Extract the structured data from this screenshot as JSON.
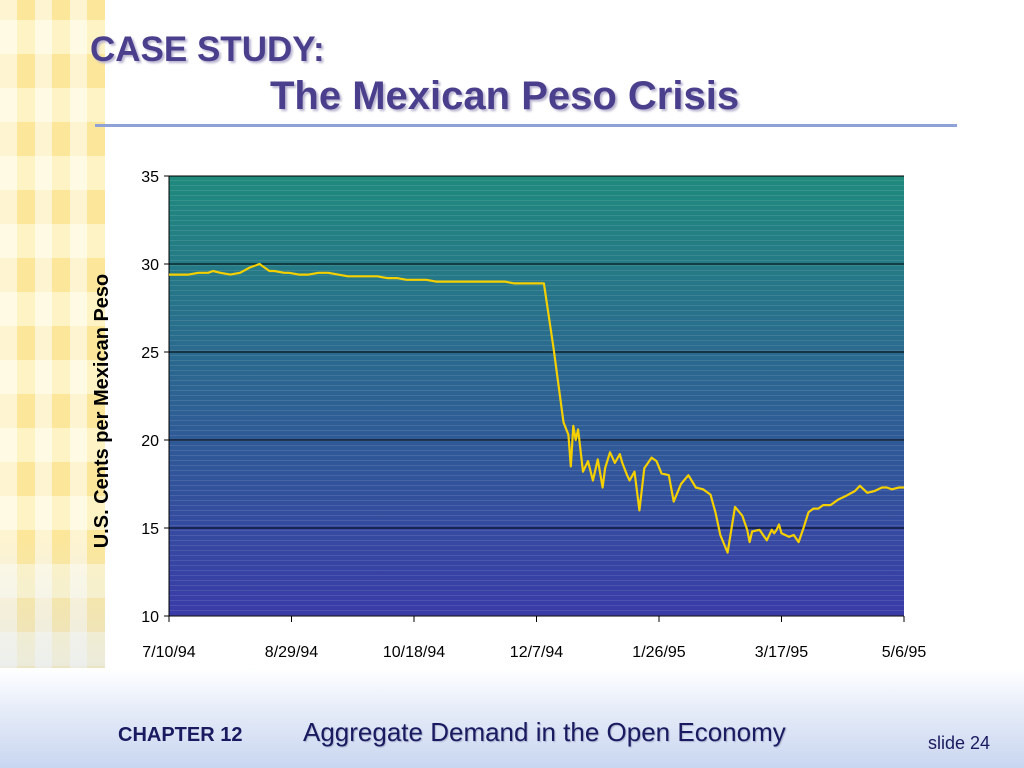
{
  "slide": {
    "title_case": "CASE STUDY:",
    "title_main": "The Mexican Peso Crisis",
    "footer_chapter": "CHAPTER 12",
    "footer_subject": "Aggregate Demand in the Open Economy",
    "footer_slide": "slide 24"
  },
  "colors": {
    "title": "#4a3f8c",
    "line": "#f5d000",
    "plot_top": "#1f8a7d",
    "plot_bottom": "#3a3ba8"
  },
  "chart_data": {
    "type": "line",
    "title": "",
    "xlabel": "",
    "ylabel": "U.S. Cents per Mexican Peso",
    "ylim": [
      10,
      35
    ],
    "yticks": [
      "10",
      "15",
      "20",
      "25",
      "30",
      "35"
    ],
    "xlim": [
      "1994-07-10",
      "1995-05-06"
    ],
    "xticks": [
      "7/10/94",
      "8/29/94",
      "10/18/94",
      "12/7/94",
      "1/26/95",
      "3/17/95",
      "5/6/95"
    ],
    "grid": true,
    "legend": "none",
    "series": [
      {
        "x": [
          "1994-07-10",
          "1994-07-14",
          "1994-07-18",
          "1994-07-22",
          "1994-07-26",
          "1994-07-28",
          "1994-07-31",
          "1994-08-04",
          "1994-08-08",
          "1994-08-12",
          "1994-08-16",
          "1994-08-20",
          "1994-08-22",
          "1994-08-26",
          "1994-08-28",
          "1994-09-01",
          "1994-09-05",
          "1994-09-09",
          "1994-09-13",
          "1994-09-17",
          "1994-09-21",
          "1994-09-25",
          "1994-09-29",
          "1994-10-03",
          "1994-10-07",
          "1994-10-11",
          "1994-10-15",
          "1994-10-19",
          "1994-10-23",
          "1994-10-27",
          "1994-10-31",
          "1994-11-04",
          "1994-11-08",
          "1994-11-12",
          "1994-11-16",
          "1994-11-20",
          "1994-11-24",
          "1994-11-28",
          "1994-12-02",
          "1994-12-06",
          "1994-12-10",
          "1994-12-14",
          "1994-12-18",
          "1994-12-20",
          "1994-12-21",
          "1994-12-22",
          "1994-12-23",
          "1994-12-24",
          "1994-12-26",
          "1994-12-28",
          "1994-12-30",
          "1995-01-01",
          "1995-01-03",
          "1995-01-04",
          "1995-01-06",
          "1995-01-08",
          "1995-01-10",
          "1995-01-11",
          "1995-01-13",
          "1995-01-14",
          "1995-01-16",
          "1995-01-18",
          "1995-01-20",
          "1995-01-23",
          "1995-01-25",
          "1995-01-27",
          "1995-01-30",
          "1995-02-01",
          "1995-02-04",
          "1995-02-07",
          "1995-02-10",
          "1995-02-13",
          "1995-02-16",
          "1995-02-18",
          "1995-02-20",
          "1995-02-23",
          "1995-02-26",
          "1995-03-01",
          "1995-03-03",
          "1995-03-04",
          "1995-03-05",
          "1995-03-08",
          "1995-03-11",
          "1995-03-13",
          "1995-03-14",
          "1995-03-15",
          "1995-03-16",
          "1995-03-17",
          "1995-03-20",
          "1995-03-22",
          "1995-03-24",
          "1995-03-26",
          "1995-03-28",
          "1995-03-30",
          "1995-04-01",
          "1995-04-03",
          "1995-04-06",
          "1995-04-09",
          "1995-04-12",
          "1995-04-16",
          "1995-04-18",
          "1995-04-21",
          "1995-04-24",
          "1995-04-27",
          "1995-04-29",
          "1995-05-01",
          "1995-05-04",
          "1995-05-06"
        ],
        "y": [
          29.4,
          29.4,
          29.4,
          29.5,
          29.5,
          29.6,
          29.5,
          29.4,
          29.5,
          29.8,
          30.0,
          29.6,
          29.6,
          29.5,
          29.5,
          29.4,
          29.4,
          29.5,
          29.5,
          29.4,
          29.3,
          29.3,
          29.3,
          29.3,
          29.2,
          29.2,
          29.1,
          29.1,
          29.1,
          29.0,
          29.0,
          29.0,
          29.0,
          29.0,
          29.0,
          29.0,
          29.0,
          28.9,
          28.9,
          28.9,
          28.9,
          25.2,
          21.0,
          20.3,
          18.5,
          20.8,
          20.0,
          20.6,
          18.2,
          18.8,
          17.7,
          18.9,
          17.3,
          18.4,
          19.3,
          18.7,
          19.2,
          18.7,
          18.0,
          17.7,
          18.2,
          16.0,
          18.4,
          19.0,
          18.8,
          18.1,
          18.0,
          16.5,
          17.5,
          18.0,
          17.3,
          17.2,
          16.9,
          15.9,
          14.6,
          13.6,
          16.2,
          15.7,
          14.9,
          14.2,
          14.8,
          14.9,
          14.3,
          14.9,
          14.7,
          14.9,
          15.2,
          14.7,
          14.5,
          14.6,
          14.2,
          15.0,
          15.9,
          16.1,
          16.1,
          16.3,
          16.3,
          16.6,
          16.8,
          17.1,
          17.4,
          17.0,
          17.1,
          17.3,
          17.3,
          17.2,
          17.3,
          17.3
        ]
      }
    ]
  }
}
